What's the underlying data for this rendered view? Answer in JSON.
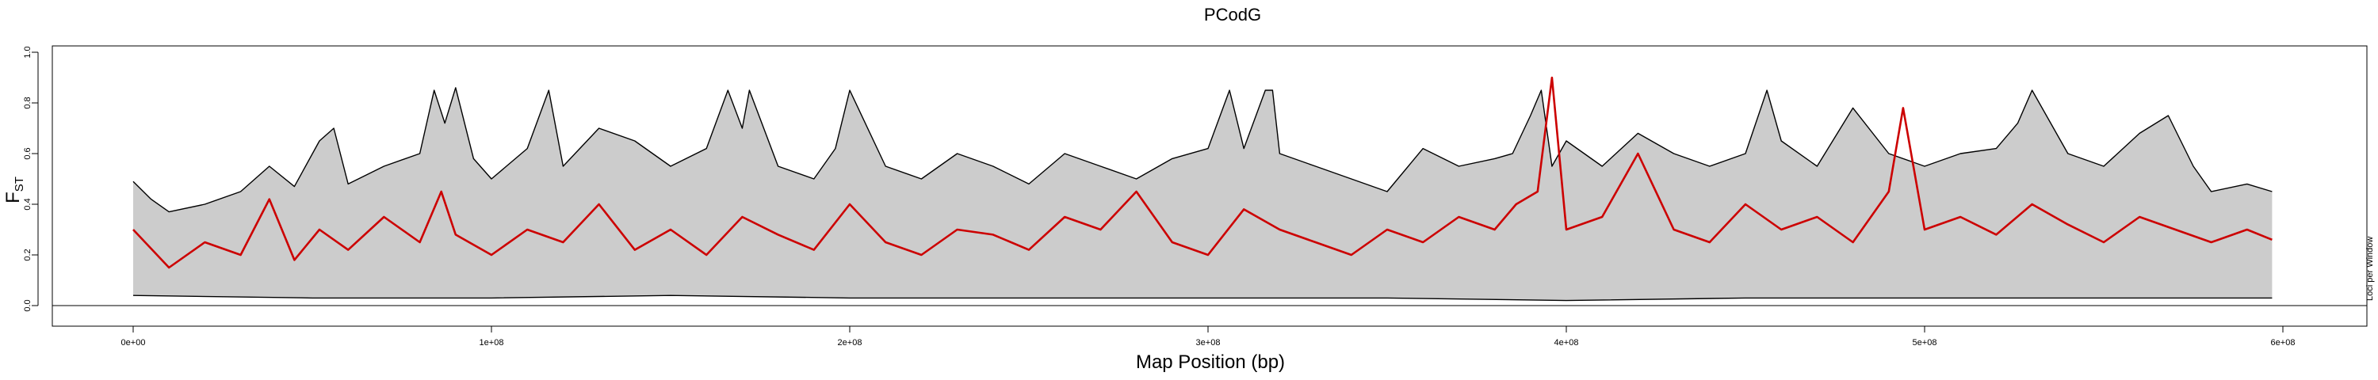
{
  "chart_data": {
    "type": "area",
    "title": "PCodG",
    "xlabel": "Map Position (bp)",
    "ylabel_main": "F",
    "ylabel_sub": "ST",
    "right_label": "Loci per Window",
    "xlim": [
      0,
      600000000
    ],
    "ylim": [
      0,
      1.0
    ],
    "x_ticks": [
      {
        "value": 0,
        "label": "0e+00"
      },
      {
        "value": 100000000,
        "label": "1e+08"
      },
      {
        "value": 200000000,
        "label": "2e+08"
      },
      {
        "value": 300000000,
        "label": "3e+08"
      },
      {
        "value": 400000000,
        "label": "4e+08"
      },
      {
        "value": 500000000,
        "label": "5e+08"
      },
      {
        "value": 600000000,
        "label": "6e+08"
      }
    ],
    "y_ticks": [
      {
        "value": 0.0,
        "label": "0.0"
      },
      {
        "value": 0.2,
        "label": "0.2"
      },
      {
        "value": 0.4,
        "label": "0.4"
      },
      {
        "value": 0.6,
        "label": "0.6"
      },
      {
        "value": 0.8,
        "label": "0.8"
      },
      {
        "value": 1.0,
        "label": "1.0"
      }
    ],
    "hline": 0.0,
    "colors": {
      "band_fill": "#cccccc",
      "band_line": "#000000",
      "mean_line": "#cc0000"
    },
    "series": [
      {
        "name": "upper",
        "x": [
          0,
          5000000,
          10000000,
          20000000,
          30000000,
          38000000,
          45000000,
          52000000,
          56000000,
          60000000,
          70000000,
          80000000,
          84000000,
          87000000,
          90000000,
          95000000,
          100000000,
          110000000,
          116000000,
          120000000,
          130000000,
          140000000,
          150000000,
          160000000,
          166000000,
          170000000,
          172000000,
          180000000,
          190000000,
          196000000,
          200000000,
          210000000,
          220000000,
          230000000,
          240000000,
          250000000,
          260000000,
          270000000,
          280000000,
          290000000,
          300000000,
          306000000,
          310000000,
          316000000,
          318000000,
          320000000,
          330000000,
          340000000,
          350000000,
          360000000,
          370000000,
          380000000,
          385000000,
          390000000,
          393000000,
          396000000,
          400000000,
          410000000,
          420000000,
          430000000,
          440000000,
          450000000,
          456000000,
          460000000,
          470000000,
          480000000,
          490000000,
          500000000,
          510000000,
          520000000,
          526000000,
          530000000,
          540000000,
          550000000,
          560000000,
          568000000,
          575000000,
          580000000,
          590000000,
          597000000
        ],
        "values": [
          0.49,
          0.42,
          0.37,
          0.4,
          0.45,
          0.55,
          0.47,
          0.65,
          0.7,
          0.48,
          0.55,
          0.6,
          0.85,
          0.72,
          0.86,
          0.58,
          0.5,
          0.62,
          0.85,
          0.55,
          0.7,
          0.65,
          0.55,
          0.62,
          0.85,
          0.7,
          0.85,
          0.55,
          0.5,
          0.62,
          0.85,
          0.55,
          0.5,
          0.6,
          0.55,
          0.48,
          0.6,
          0.55,
          0.5,
          0.58,
          0.62,
          0.85,
          0.62,
          0.85,
          0.85,
          0.6,
          0.55,
          0.5,
          0.45,
          0.62,
          0.55,
          0.58,
          0.6,
          0.75,
          0.85,
          0.55,
          0.65,
          0.55,
          0.68,
          0.6,
          0.55,
          0.6,
          0.85,
          0.65,
          0.55,
          0.78,
          0.6,
          0.55,
          0.6,
          0.62,
          0.72,
          0.85,
          0.6,
          0.55,
          0.68,
          0.75,
          0.55,
          0.45,
          0.48,
          0.45
        ]
      },
      {
        "name": "lower",
        "x": [
          0,
          50000000,
          100000000,
          150000000,
          200000000,
          250000000,
          300000000,
          350000000,
          400000000,
          450000000,
          500000000,
          550000000,
          597000000
        ],
        "values": [
          0.04,
          0.03,
          0.03,
          0.04,
          0.03,
          0.03,
          0.03,
          0.03,
          0.02,
          0.03,
          0.03,
          0.03,
          0.03
        ]
      },
      {
        "name": "mean",
        "x": [
          0,
          10000000,
          20000000,
          30000000,
          38000000,
          45000000,
          52000000,
          60000000,
          70000000,
          80000000,
          86000000,
          90000000,
          100000000,
          110000000,
          120000000,
          130000000,
          140000000,
          150000000,
          160000000,
          170000000,
          180000000,
          190000000,
          200000000,
          210000000,
          220000000,
          230000000,
          240000000,
          250000000,
          260000000,
          270000000,
          280000000,
          290000000,
          300000000,
          310000000,
          320000000,
          330000000,
          340000000,
          350000000,
          360000000,
          370000000,
          380000000,
          386000000,
          392000000,
          396000000,
          400000000,
          410000000,
          420000000,
          430000000,
          440000000,
          450000000,
          460000000,
          470000000,
          480000000,
          490000000,
          494000000,
          500000000,
          510000000,
          520000000,
          530000000,
          540000000,
          550000000,
          560000000,
          570000000,
          580000000,
          590000000,
          597000000
        ],
        "values": [
          0.3,
          0.15,
          0.25,
          0.2,
          0.42,
          0.18,
          0.3,
          0.22,
          0.35,
          0.25,
          0.45,
          0.28,
          0.2,
          0.3,
          0.25,
          0.4,
          0.22,
          0.3,
          0.2,
          0.35,
          0.28,
          0.22,
          0.4,
          0.25,
          0.2,
          0.3,
          0.28,
          0.22,
          0.35,
          0.3,
          0.45,
          0.25,
          0.2,
          0.38,
          0.3,
          0.25,
          0.2,
          0.3,
          0.25,
          0.35,
          0.3,
          0.4,
          0.45,
          0.9,
          0.3,
          0.35,
          0.6,
          0.3,
          0.25,
          0.4,
          0.3,
          0.35,
          0.25,
          0.45,
          0.78,
          0.3,
          0.35,
          0.28,
          0.4,
          0.32,
          0.25,
          0.35,
          0.3,
          0.25,
          0.3,
          0.26
        ]
      }
    ]
  }
}
